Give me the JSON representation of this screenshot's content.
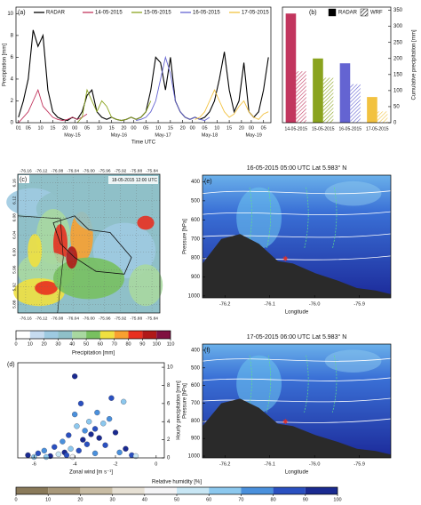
{
  "chart_data": [
    {
      "type": "line",
      "label": "(a)",
      "x": [
        1,
        3,
        5,
        7,
        9,
        11,
        13,
        15,
        17,
        19,
        21,
        23,
        25,
        27,
        29,
        31,
        33,
        35,
        37,
        39,
        41,
        43,
        45,
        47,
        49,
        51,
        53,
        55,
        57,
        59,
        61,
        63,
        65,
        67,
        69,
        71,
        73,
        75,
        77,
        79,
        81,
        83,
        85,
        87,
        89,
        91,
        93,
        95,
        97,
        99,
        101,
        103
      ],
      "series": [
        {
          "name": "RADAR",
          "color": "#000000",
          "values": [
            0.5,
            2,
            4,
            8.5,
            7,
            8,
            3,
            1,
            0.5,
            0.3,
            0.2,
            0.5,
            0.3,
            1,
            2.5,
            3,
            1,
            0.5,
            0.3,
            0.5,
            0.3,
            0.2,
            0.3,
            0.5,
            0.3,
            0.5,
            1,
            3,
            6,
            5.5,
            3,
            6,
            2,
            1,
            0.5,
            0.3,
            0.5,
            0.3,
            0.5,
            1,
            2,
            4,
            6.5,
            3,
            1,
            2,
            5.5,
            1,
            0.5,
            1,
            3,
            6
          ]
        },
        {
          "name": "14-05-2015",
          "color": "#c2355e",
          "values": [
            0,
            0.5,
            1,
            2,
            3,
            1.5,
            1,
            0.5,
            0.3,
            0.2,
            0.3,
            0.5,
            0.3,
            0.5,
            0.8,
            null,
            null,
            null,
            null,
            null,
            null,
            null,
            null,
            null,
            null,
            null,
            null,
            null,
            null,
            null,
            null,
            null,
            null,
            null,
            null,
            null,
            null,
            null,
            null,
            null,
            null,
            null,
            null,
            null,
            null,
            null,
            null,
            null,
            null,
            null,
            null,
            null
          ]
        },
        {
          "name": "15-05-2015",
          "color": "#8aa31e",
          "values": [
            null,
            null,
            null,
            null,
            null,
            null,
            null,
            null,
            null,
            null,
            null,
            null,
            0,
            0.5,
            3,
            2,
            1,
            2,
            1.5,
            0.5,
            0.3,
            0.2,
            0.3,
            0.5,
            0.3,
            0.5,
            1,
            2,
            null,
            null,
            null,
            null,
            null,
            null,
            null,
            null,
            null,
            null,
            null,
            null,
            null,
            null,
            null,
            null,
            null,
            null,
            null,
            null,
            null,
            null,
            null,
            null
          ]
        },
        {
          "name": "16-05-2015",
          "color": "#6464d2",
          "values": [
            null,
            null,
            null,
            null,
            null,
            null,
            null,
            null,
            null,
            null,
            null,
            null,
            null,
            null,
            null,
            null,
            null,
            null,
            null,
            null,
            null,
            null,
            null,
            null,
            0.2,
            0.3,
            0.5,
            1,
            2,
            4,
            6,
            4.5,
            2,
            1,
            0.5,
            0.3,
            0.5,
            0.3,
            0.2,
            0.5,
            null,
            null,
            null,
            null,
            null,
            null,
            null,
            null,
            null,
            null,
            null,
            null
          ]
        },
        {
          "name": "17-05-2015",
          "color": "#f2c240",
          "values": [
            null,
            null,
            null,
            null,
            null,
            null,
            null,
            null,
            null,
            null,
            null,
            null,
            null,
            null,
            null,
            null,
            null,
            null,
            null,
            null,
            null,
            null,
            null,
            null,
            null,
            null,
            null,
            null,
            null,
            null,
            null,
            null,
            null,
            null,
            null,
            null,
            0.3,
            0.5,
            1,
            2,
            3,
            2,
            1,
            0.5,
            0.8,
            1.5,
            2,
            1,
            0.5,
            0.3,
            0.8,
            1
          ]
        }
      ],
      "xlim": [
        0,
        104
      ],
      "xticks": [
        {
          "value": 1,
          "label": "01"
        },
        {
          "value": 5,
          "label": "05"
        },
        10,
        15,
        20,
        {
          "value": 24,
          "label": "00"
        },
        {
          "value": 29,
          "label": "05"
        },
        {
          "value": 34,
          "label": "10"
        },
        {
          "value": 39,
          "label": "15"
        },
        {
          "value": 44,
          "label": "20"
        },
        {
          "value": 48,
          "label": "00"
        },
        {
          "value": 53,
          "label": "05"
        },
        {
          "value": 58,
          "label": "10"
        },
        {
          "value": 63,
          "label": "15"
        },
        {
          "value": 68,
          "label": "20"
        },
        {
          "value": 72,
          "label": "00"
        },
        {
          "value": 77,
          "label": "05"
        },
        {
          "value": 82,
          "label": "10"
        },
        {
          "value": 87,
          "label": "15"
        },
        {
          "value": 92,
          "label": "20"
        },
        {
          "value": 96,
          "label": "00"
        },
        {
          "value": 101,
          "label": "05"
        }
      ],
      "date_ticks": [
        {
          "value": 23,
          "label": "May-15"
        },
        {
          "value": 42,
          "label": "May-16"
        },
        {
          "value": 60,
          "label": "May-17"
        },
        {
          "value": 79,
          "label": "May-18"
        },
        {
          "value": 97,
          "label": "May-19"
        }
      ],
      "xlabel": "Time UTC",
      "ylabel": "Precipitation [mm]",
      "ylim": [
        0,
        10.6
      ],
      "yticks": [
        0,
        2,
        4,
        6,
        8,
        10
      ]
    },
    {
      "type": "bar",
      "label": "(b)",
      "categories": [
        "14-05-2015",
        "15-05-2015",
        "16-05-2015",
        "17-05-2015"
      ],
      "colors": [
        "#c2355e",
        "#8aa31e",
        "#6464d2",
        "#f2c240"
      ],
      "series": [
        {
          "name": "RADAR",
          "color": "#000000",
          "pattern": "solid",
          "values": [
            340,
            200,
            185,
            80
          ]
        },
        {
          "name": "WRF",
          "color": "#000000",
          "pattern": "hatch",
          "values": [
            160,
            140,
            120,
            35
          ]
        }
      ],
      "ylabel": "Cumulative precipitation [mm]",
      "yaxis": "right",
      "ylim": [
        0,
        360
      ],
      "yticks": [
        0,
        50,
        100,
        150,
        200,
        250,
        300,
        350
      ]
    },
    {
      "type": "scatter",
      "label": "(d)",
      "x": [
        -6.3,
        -6,
        -5.8,
        -5.5,
        -5.2,
        -5,
        -4.8,
        -4.6,
        -4.5,
        -4.3,
        -4.2,
        -4,
        -4,
        -3.9,
        -3.8,
        -3.6,
        -3.5,
        -3.4,
        -3.3,
        -3.2,
        -3,
        -3,
        -2.8,
        -2.6,
        -2.5,
        -2.3,
        -2.2,
        -2,
        -1.8,
        -1.6,
        -1.5,
        -1.2,
        -1,
        -4.1,
        -3.7,
        -2.9,
        -5.4,
        -4.4
      ],
      "values": [
        0.3,
        0.1,
        0.5,
        0.8,
        0.2,
        1.2,
        0.4,
        1.8,
        0.6,
        2.5,
        1,
        9,
        4.8,
        3.5,
        0.8,
        2,
        3,
        1.5,
        4,
        2.6,
        3.2,
        0.5,
        2.2,
        3.8,
        1.4,
        4.3,
        6.6,
        2.8,
        0.6,
        6.2,
        1,
        0.3,
        0.2,
        0.1,
        6,
        5,
        0.1,
        0.3
      ],
      "humidity": [
        90,
        60,
        80,
        70,
        95,
        85,
        55,
        75,
        90,
        80,
        65,
        95,
        70,
        60,
        85,
        90,
        75,
        80,
        65,
        95,
        85,
        70,
        90,
        60,
        80,
        75,
        85,
        95,
        70,
        60,
        90,
        80,
        50,
        40,
        85,
        75,
        65,
        88
      ],
      "xlabel": "Zonal wind [m s⁻¹]",
      "ylabel": "Hourly precipitation [mm]",
      "yaxis": "right",
      "xlim": [
        -6.8,
        0.4
      ],
      "xticks": [
        -6,
        -4,
        -2,
        0
      ],
      "ylim": [
        0,
        10.5
      ],
      "yticks": [
        0,
        2,
        4,
        6,
        8,
        10
      ]
    },
    {
      "type": "map",
      "label": "(c)",
      "annotation": "18-05-2015 12:00 UTC",
      "xlim": [
        -76.18,
        -75.82
      ],
      "xticks": [
        -76.16,
        -76.12,
        -76.08,
        -76.04,
        {
          "value": -76,
          "label": "-76.00"
        },
        -75.96,
        -75.92,
        -75.88,
        -75.84
      ],
      "ylim": [
        5.86,
        6.18
      ],
      "yticks": [
        6.16,
        6.12,
        6.08,
        6.04,
        {
          "value": 6,
          "label": "6.00"
        },
        5.96,
        5.92,
        5.88
      ]
    },
    {
      "type": "section",
      "label": "(e)",
      "title": "16-05-2015 05:00 UTC Lat 5.983° N",
      "xlabel": "Longitude",
      "ylabel": "Pressure [hPa]",
      "xlim": [
        -76.25,
        -75.83
      ],
      "xticks": [
        -76.2,
        -76.1,
        {
          "value": -76,
          "label": "-76.0"
        },
        -75.9
      ],
      "ylim": [
        1010,
        365
      ],
      "yticks": [
        400,
        500,
        600,
        700,
        800,
        900,
        1000
      ]
    },
    {
      "type": "section",
      "label": "(f)",
      "title": "17-05-2015 06:00 UTC Lat 5.983° N",
      "xlabel": "Longitude",
      "ylabel": "Pressure [hPa]",
      "xlim": [
        -76.25,
        -75.83
      ],
      "xticks": [
        -76.2,
        -76.1,
        {
          "value": -76,
          "label": "-76.0"
        },
        -75.9
      ],
      "ylim": [
        1010,
        365
      ],
      "yticks": [
        400,
        500,
        600,
        700,
        800,
        900,
        1000
      ]
    },
    {
      "type": "colorbar",
      "title": "Precipitation [mm]",
      "ticks": [
        0,
        10,
        20,
        30,
        40,
        50,
        60,
        70,
        80,
        90,
        100,
        110
      ],
      "colors": [
        "#ffffff",
        "#c6dbef",
        "#9ecae1",
        "#8fc0c8",
        "#a8d8a0",
        "#78c060",
        "#f0e040",
        "#f8a030",
        "#e83020",
        "#b01818",
        "#801040"
      ]
    },
    {
      "type": "colorbar",
      "title": "Relative humidity [%]",
      "ticks": [
        0,
        10,
        20,
        30,
        40,
        50,
        60,
        70,
        80,
        90,
        100
      ],
      "colors": [
        "#8a7a5a",
        "#a8987a",
        "#c8bca4",
        "#e6e0d4",
        "#f4f4f6",
        "#c8e6f4",
        "#8cc8ee",
        "#4a90dc",
        "#2a50c0",
        "#1a2a90"
      ]
    }
  ]
}
